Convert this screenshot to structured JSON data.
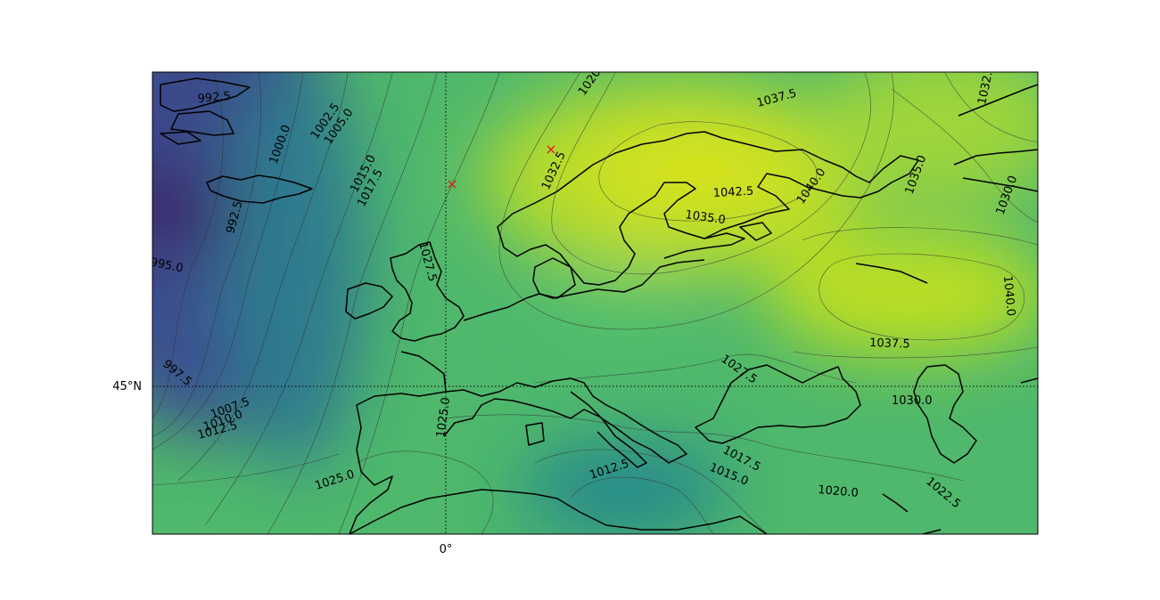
{
  "figure": {
    "meridian_label": "0°",
    "parallel_label": "45°N"
  },
  "colors": {
    "low": "#3b1e6b",
    "mid_low": "#3a5a93",
    "mid": "#2b8f8c",
    "mid_high": "#4fc269",
    "high": "#cde11d",
    "coast": "#000000",
    "marker": "#e51919",
    "contour": "#303030"
  },
  "contour_labels": [
    {
      "text": "992.5"
    },
    {
      "text": "1002.5"
    },
    {
      "text": "1005.0"
    },
    {
      "text": "1000.0"
    },
    {
      "text": "1015.0"
    },
    {
      "text": "1017.5"
    },
    {
      "text": "992.5"
    },
    {
      "text": "995.0"
    },
    {
      "text": "997.5"
    },
    {
      "text": "1007.5"
    },
    {
      "text": "1010.0"
    },
    {
      "text": "1012.5"
    },
    {
      "text": "1020"
    },
    {
      "text": "1037.5"
    },
    {
      "text": "1032."
    },
    {
      "text": "1032.5"
    },
    {
      "text": "1042.5"
    },
    {
      "text": "1040.0"
    },
    {
      "text": "1035.0"
    },
    {
      "text": "1035.0"
    },
    {
      "text": "1030.0"
    },
    {
      "text": "1040.0"
    },
    {
      "text": "1037.5"
    },
    {
      "text": "1027.5"
    },
    {
      "text": "1027.5"
    },
    {
      "text": "1030.0"
    },
    {
      "text": "1025.0"
    },
    {
      "text": "1025.0"
    },
    {
      "text": "1012.5"
    },
    {
      "text": "1017.5"
    },
    {
      "text": "1015.0"
    },
    {
      "text": "1020.0"
    },
    {
      "text": "1022.5"
    }
  ],
  "markers": [
    {
      "name": "marker-1",
      "symbol": "×"
    },
    {
      "name": "marker-2",
      "symbol": "×"
    }
  ]
}
